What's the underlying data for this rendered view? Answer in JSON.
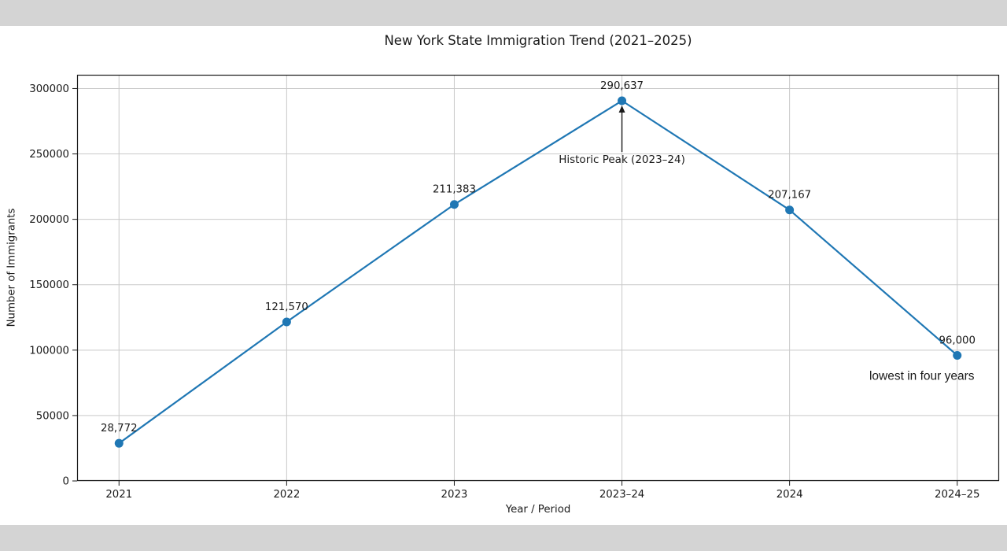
{
  "page": {
    "letterbox_color": "#d4d4d4",
    "background_color": "#ffffff"
  },
  "chart_data": {
    "type": "line",
    "title": "New York State Immigration Trend (2021–2025)",
    "xlabel": "Year / Period",
    "ylabel": "Number of Immigrants",
    "categories": [
      "2021",
      "2022",
      "2023",
      "2023–24",
      "2024",
      "2024–25"
    ],
    "values": [
      28772,
      121570,
      211383,
      290637,
      207167,
      96000
    ],
    "point_labels": [
      "28,772",
      "121,570",
      "211,383",
      "290,637",
      "207,167",
      "96,000"
    ],
    "yticks": [
      0,
      50000,
      100000,
      150000,
      200000,
      250000,
      300000
    ],
    "ytick_labels": [
      "0",
      "50000",
      "100000",
      "150000",
      "200000",
      "250000",
      "300000"
    ],
    "ylim": [
      0,
      310500
    ],
    "grid": true,
    "legend": "none",
    "line_color": "#1f77b4",
    "marker_color": "#1f77b4",
    "grid_color": "#c9c9c9",
    "axis_color": "#1a1a1a",
    "text_color": "#1a1a1a",
    "annotations": [
      {
        "text": "Historic Peak (2023–24)",
        "type": "arrow-callout",
        "category_index": 3
      },
      {
        "text": "lowest in four years",
        "type": "text",
        "category_index": 5
      }
    ]
  }
}
